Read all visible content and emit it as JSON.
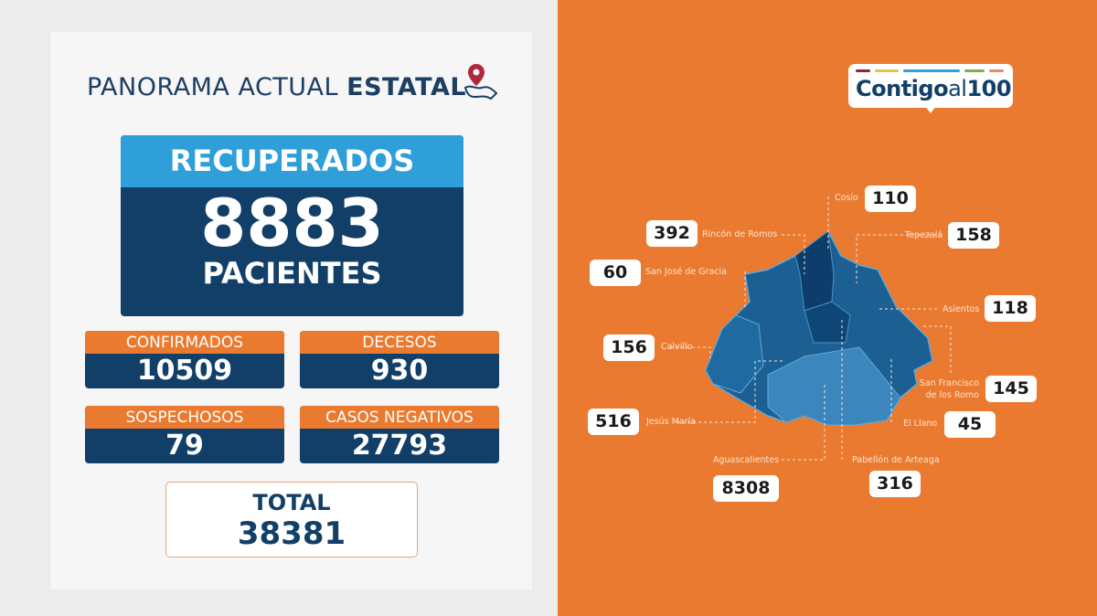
{
  "title": {
    "regular": "PANORAMA ACTUAL ",
    "bold": "ESTATAL",
    "icon": "map-pin-hand-icon"
  },
  "recuperados": {
    "label": "RECUPERADOS",
    "value": "8883",
    "unit": "PACIENTES"
  },
  "cards": [
    {
      "label": "CONFIRMADOS",
      "value": "10509"
    },
    {
      "label": "DECESOS",
      "value": "930"
    },
    {
      "label": "SOSPECHOSOS",
      "value": "79"
    },
    {
      "label": "CASOS NEGATIVOS",
      "value": "27793"
    }
  ],
  "total": {
    "label": "TOTAL",
    "value": "38381"
  },
  "logo": {
    "text": "Contigo al 100",
    "colors": [
      "#9b2235",
      "#e7c24a",
      "#2e9fd8",
      "#7bb342",
      "#e98a5c"
    ]
  },
  "colors": {
    "orange": "#ea7a2f",
    "navy": "#123f68",
    "light_blue": "#2e9fd8"
  },
  "municipios": [
    {
      "name": "Cosío",
      "value": "110"
    },
    {
      "name": "Rincón de Romos",
      "value": "392"
    },
    {
      "name": "Tepezalá",
      "value": "158"
    },
    {
      "name": "San José de Gracia",
      "value": "60"
    },
    {
      "name": "Asientos",
      "value": "118"
    },
    {
      "name": "Calvillo",
      "value": "156"
    },
    {
      "name": "San Francisco de los Romo",
      "value": "145"
    },
    {
      "name": "Jesús María",
      "value": "516"
    },
    {
      "name": "El Llano",
      "value": "45"
    },
    {
      "name": "Aguascalientes",
      "value": "8308"
    },
    {
      "name": "Pabellón de Arteaga",
      "value": "316"
    }
  ]
}
